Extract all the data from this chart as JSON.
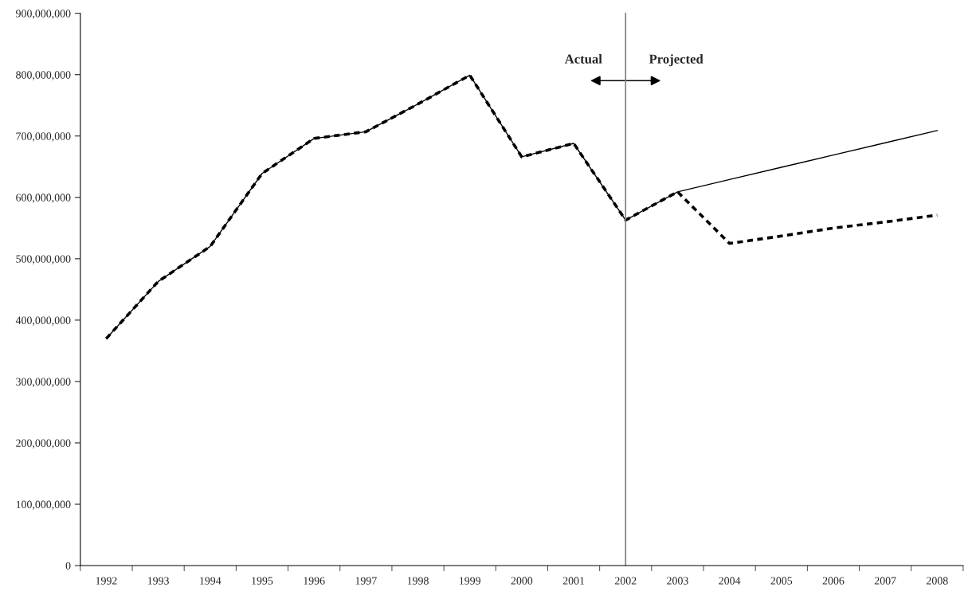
{
  "chart_data": {
    "type": "line",
    "categories": [
      "1992",
      "1993",
      "1994",
      "1995",
      "1996",
      "1997",
      "1998",
      "1999",
      "2000",
      "2001",
      "2002",
      "2003",
      "2004",
      "2005",
      "2006",
      "2007",
      "2008"
    ],
    "series": [
      {
        "color": "#000000",
        "line_style": "solid",
        "values": [
          370000000,
          463000000,
          520000000,
          639000000,
          696000000,
          707000000,
          752000000,
          799000000,
          666000000,
          688000000,
          563000000,
          609000000,
          629000000,
          649000000,
          669000000,
          689000000,
          709000000
        ]
      },
      {
        "color": "#000000",
        "line_style": "dashed",
        "values": [
          370000000,
          463000000,
          520000000,
          639000000,
          696000000,
          707000000,
          752000000,
          799000000,
          666000000,
          688000000,
          563000000,
          609000000,
          525000000,
          537000000,
          550000000,
          560000000,
          571000000
        ]
      }
    ],
    "ylim": [
      0,
      900000000
    ],
    "yticks": [
      {
        "value": 0,
        "label": "0"
      },
      {
        "value": 100000000,
        "label": "100,000,000"
      },
      {
        "value": 200000000,
        "label": "200,000,000"
      },
      {
        "value": 300000000,
        "label": "300,000,000"
      },
      {
        "value": 400000000,
        "label": "400,000,000"
      },
      {
        "value": 500000000,
        "label": "500,000,000"
      },
      {
        "value": 600000000,
        "label": "600,000,000"
      },
      {
        "value": 700000000,
        "label": "700,000,000"
      },
      {
        "value": 800000000,
        "label": "800,000,000"
      },
      {
        "value": 900000000,
        "label": "900,000,000"
      }
    ],
    "ref_lines": [
      {
        "axis": "x",
        "value": "2002",
        "color": "#808080"
      }
    ],
    "annotations": [
      "Actual",
      "Projected"
    ]
  }
}
